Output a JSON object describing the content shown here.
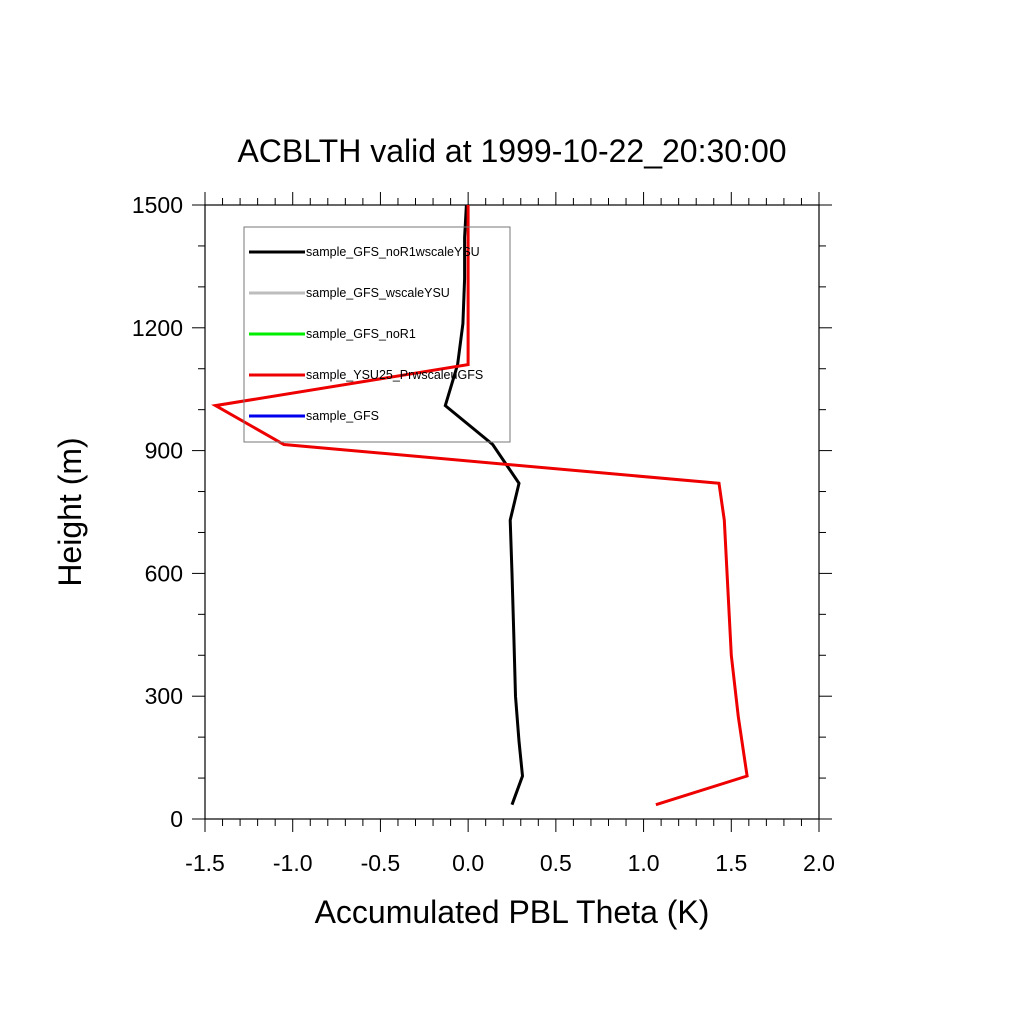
{
  "chart_data": {
    "type": "line",
    "title": "ACBLTH valid at 1999-10-22_20:30:00",
    "xlabel": "Accumulated PBL Theta (K)",
    "ylabel": "Height (m)",
    "xlim": [
      -1.5,
      2.0
    ],
    "ylim": [
      0,
      1500
    ],
    "x_ticks": [
      -1.5,
      -1.0,
      -0.5,
      0.0,
      0.5,
      1.0,
      1.5,
      2.0
    ],
    "x_tick_labels": [
      "-1.5",
      "-1.0",
      "-0.5",
      "0.0",
      "0.5",
      "1.0",
      "1.5",
      "2.0"
    ],
    "y_ticks": [
      0,
      300,
      600,
      900,
      1200,
      1500
    ],
    "y_tick_labels": [
      "0",
      "300",
      "600",
      "900",
      "1200",
      "1500"
    ],
    "grid": false,
    "legend_position": "top-left",
    "series": [
      {
        "name": "sample_GFS_noR1wscaleYSU",
        "color": "#000000",
        "points": [
          [
            0.25,
            35
          ],
          [
            0.31,
            105
          ],
          [
            0.29,
            190
          ],
          [
            0.27,
            300
          ],
          [
            0.26,
            450
          ],
          [
            0.25,
            600
          ],
          [
            0.24,
            730
          ],
          [
            0.29,
            820
          ],
          [
            0.14,
            915
          ],
          [
            -0.13,
            1010
          ],
          [
            -0.06,
            1110
          ],
          [
            -0.03,
            1210
          ],
          [
            -0.02,
            1320
          ],
          [
            -0.02,
            1420
          ],
          [
            -0.01,
            1500
          ]
        ]
      },
      {
        "name": "sample_GFS_wscaleYSU",
        "color": "#bdbdbd",
        "points": []
      },
      {
        "name": "sample_GFS_noR1",
        "color": "#00ee00",
        "points": []
      },
      {
        "name": "sample_YSU25_PrwscaleuGFS",
        "color": "#ee0000",
        "points": [
          [
            1.07,
            35
          ],
          [
            1.59,
            105
          ],
          [
            1.54,
            250
          ],
          [
            1.5,
            400
          ],
          [
            1.46,
            730
          ],
          [
            1.43,
            820
          ],
          [
            -1.05,
            915
          ],
          [
            -1.44,
            1010
          ],
          [
            0.0,
            1110
          ],
          [
            0.0,
            1210
          ],
          [
            0.0,
            1320
          ],
          [
            0.0,
            1420
          ],
          [
            0.0,
            1500
          ]
        ]
      },
      {
        "name": "sample_GFS",
        "color": "#0000ee",
        "points": []
      }
    ]
  }
}
